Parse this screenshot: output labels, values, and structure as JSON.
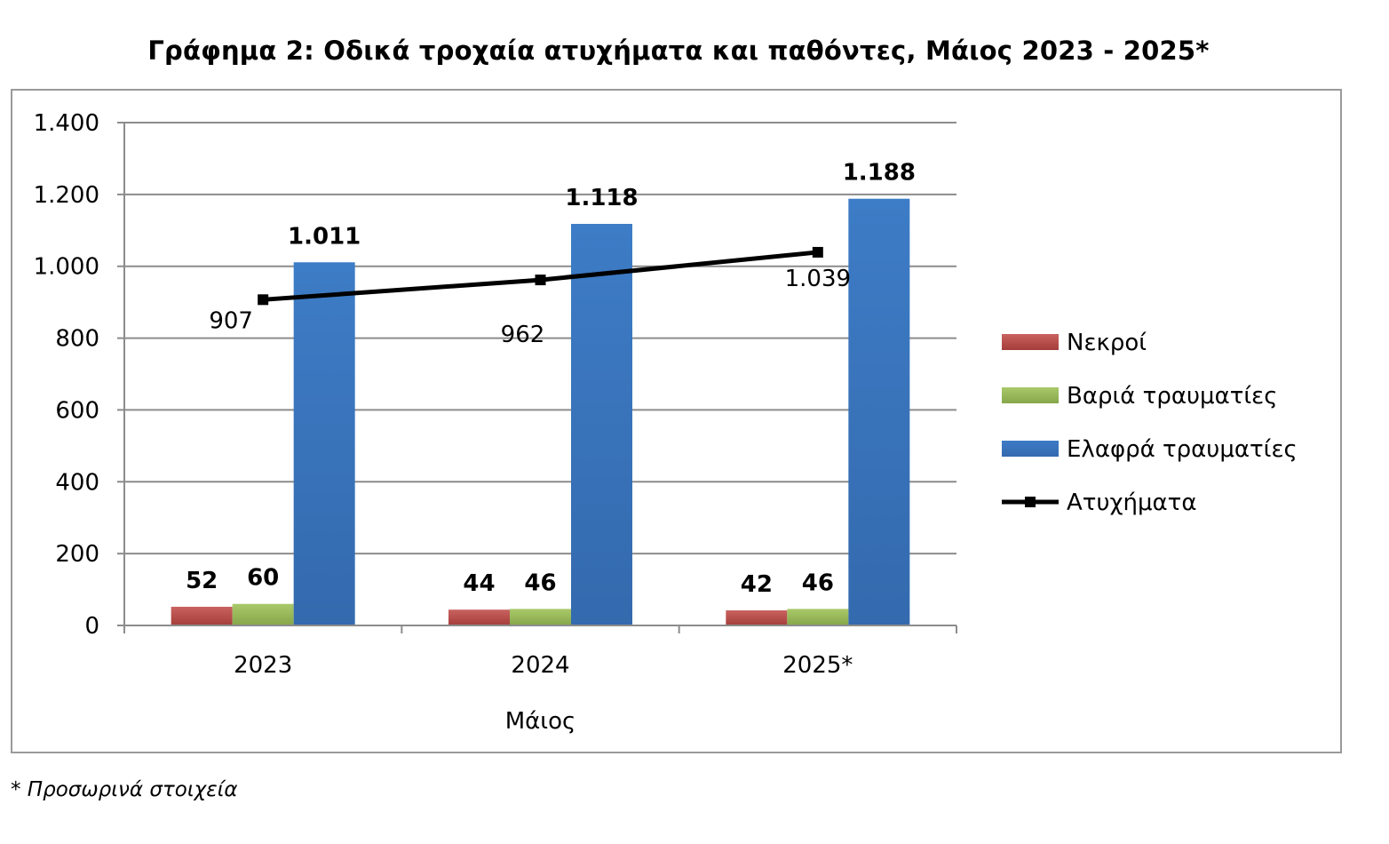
{
  "title": "Γράφημα 2: Οδικά τροχαία ατυχήματα και παθόντες, Μάιος 2023 - 2025*",
  "footnote": "* Προσωρινά στοιχεία",
  "chart_data": {
    "type": "bar",
    "title": "Γράφημα 2: Οδικά τροχαία ατυχήματα και παθόντες, Μάιος 2023 - 2025*",
    "xlabel": "Μάιος",
    "ylabel": "",
    "categories": [
      "2023",
      "2024",
      "2025*"
    ],
    "ylim": [
      0,
      1400
    ],
    "yticks": [
      0,
      200,
      400,
      600,
      800,
      1000,
      1200,
      1400
    ],
    "ytick_labels": [
      "0",
      "200",
      "400",
      "600",
      "800",
      "1.000",
      "1.200",
      "1.400"
    ],
    "grid": true,
    "legend_position": "right",
    "series": [
      {
        "name": "Νεκροί",
        "type": "bar",
        "color": "#c0504d",
        "values": [
          52,
          44,
          42
        ],
        "labels": [
          "52",
          "44",
          "42"
        ]
      },
      {
        "name": "Βαριά τραυματίες",
        "type": "bar",
        "color": "#9bbb59",
        "values": [
          60,
          46,
          46
        ],
        "labels": [
          "60",
          "46",
          "46"
        ]
      },
      {
        "name": "Ελαφρά τραυματίες",
        "type": "bar",
        "color": "#3a75c0",
        "values": [
          1011,
          1118,
          1188
        ],
        "labels": [
          "1.011",
          "1.118",
          "1.188"
        ]
      },
      {
        "name": "Ατυχήματα",
        "type": "line",
        "color": "#000000",
        "values": [
          907,
          962,
          1039
        ],
        "labels": [
          "907",
          "962",
          "1.039"
        ]
      }
    ]
  }
}
